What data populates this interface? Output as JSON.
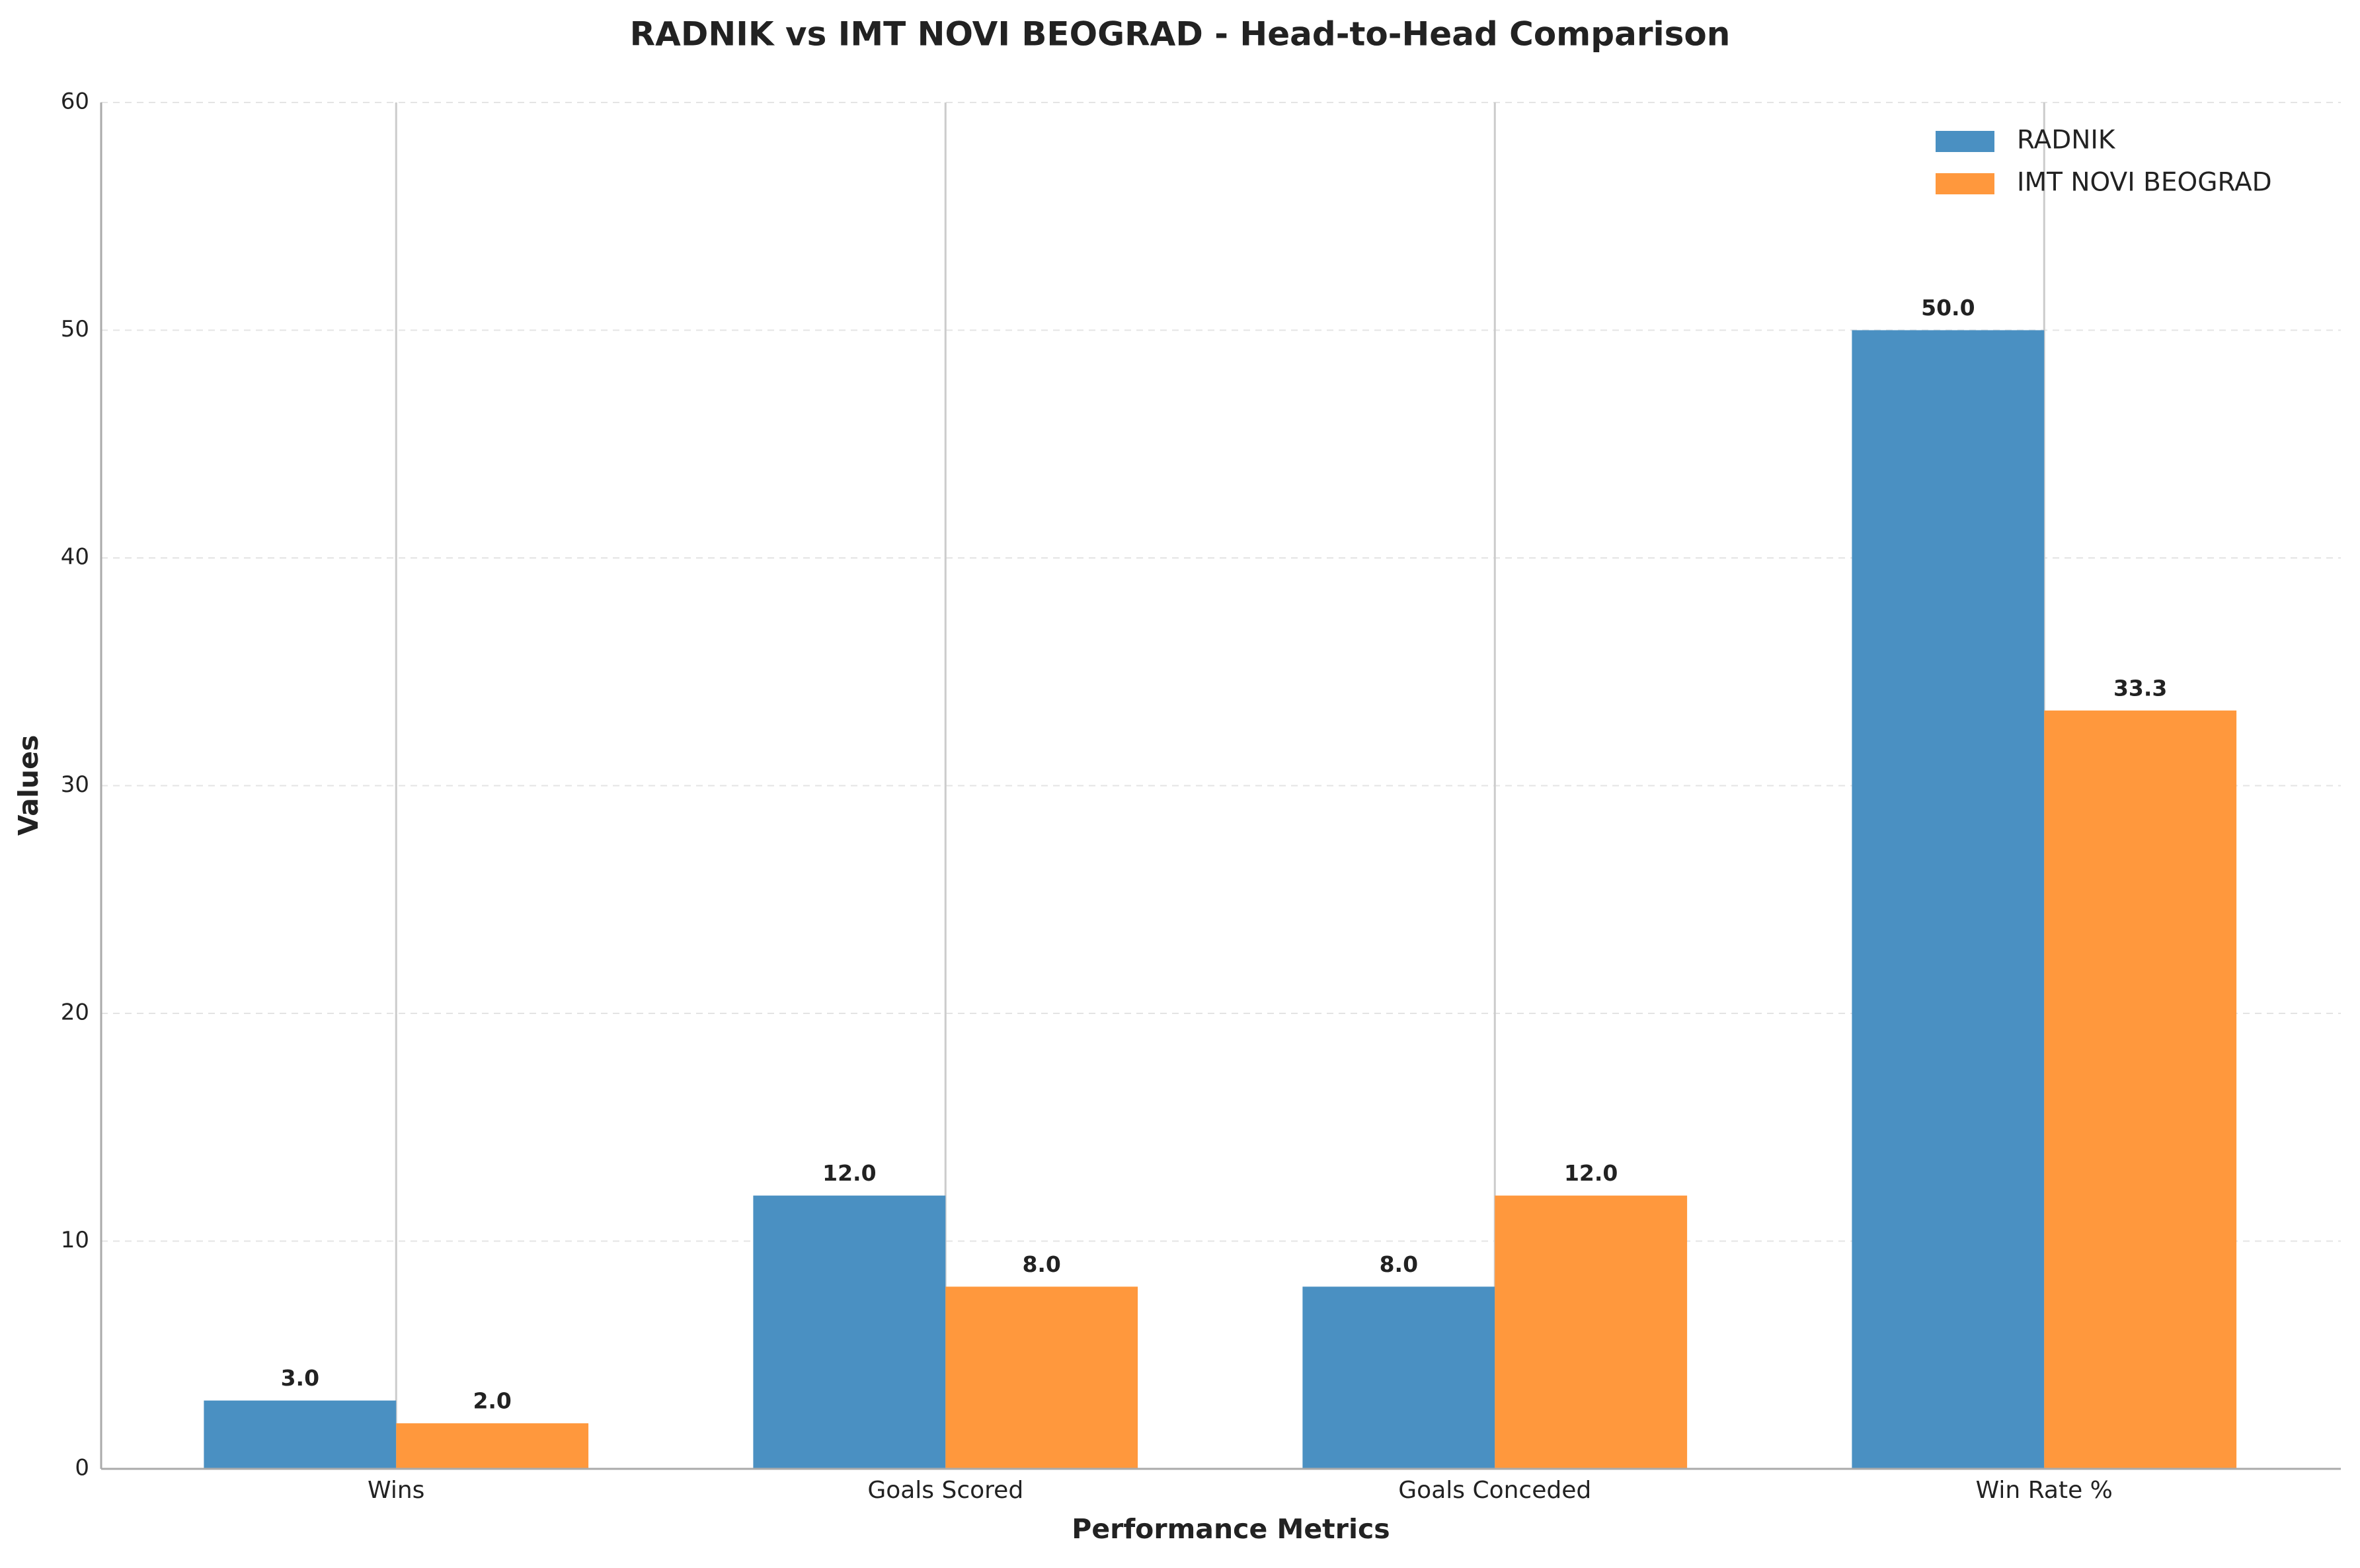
{
  "chart_data": {
    "type": "bar",
    "title": "RADNIK vs IMT NOVI BEOGRAD - Head-to-Head Comparison",
    "x_label": "Performance Metrics",
    "y_label": "Values",
    "categories": [
      "Wins",
      "Goals Scored",
      "Goals Conceded",
      "Win Rate %"
    ],
    "series": [
      {
        "name": "RADNIK",
        "color": "#4a90c2",
        "values": [
          3,
          12,
          8,
          50
        ],
        "value_labels": [
          "3.0",
          "12.0",
          "8.0",
          "50.0"
        ]
      },
      {
        "name": "IMT NOVI BEOGRAD",
        "color": "#ff983d",
        "values": [
          2,
          8,
          12,
          33.3
        ],
        "value_labels": [
          "2.0",
          "8.0",
          "12.0",
          "33.3"
        ]
      }
    ],
    "ylim": [
      0,
      60
    ],
    "yticks": [
      0,
      10,
      20,
      30,
      40,
      50,
      60
    ],
    "grid": true,
    "legend": "upper right"
  }
}
